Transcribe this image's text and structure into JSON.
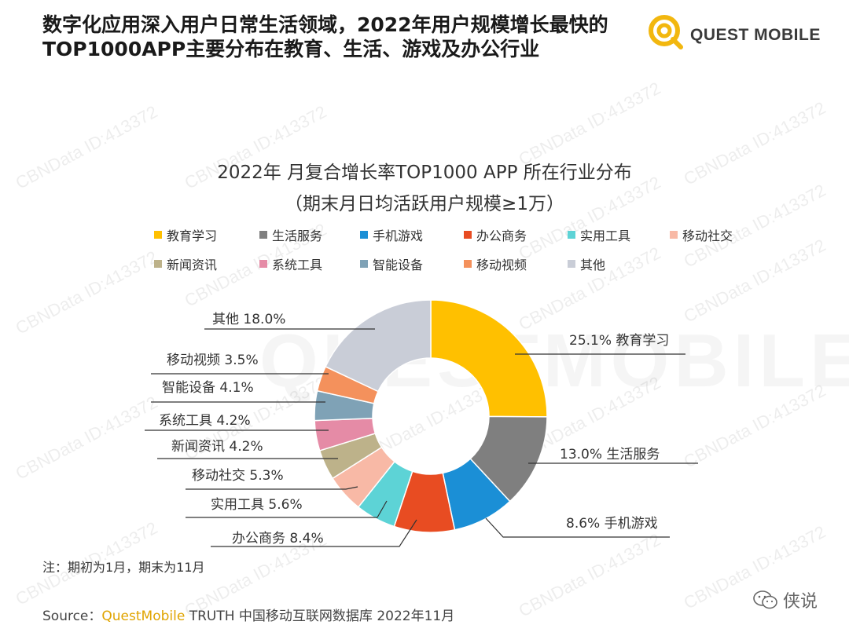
{
  "headline": {
    "line1": "数字化应用深入用户日常生活领域，2022年用户规模增长最快的",
    "line2": "TOP1000APP主要分布在教育、生活、游戏及办公行业"
  },
  "logo": {
    "text": "QUEST MOBILE"
  },
  "watermark": {
    "text": "CBNData ID:413372",
    "background_word": "QUESTMOBILE"
  },
  "chart_data": {
    "type": "pie",
    "title": "2022年 月复合增长率TOP1000 APP 所在行业分布",
    "subtitle": "（期末月日均活跃用户规模≥1万）",
    "unit": "%",
    "donut": true,
    "legend_position": "top",
    "categories": [
      "教育学习",
      "生活服务",
      "手机游戏",
      "办公商务",
      "实用工具",
      "移动社交",
      "新闻资讯",
      "系统工具",
      "智能设备",
      "移动视频",
      "其他"
    ],
    "values": [
      25.1,
      13.0,
      8.6,
      8.4,
      5.6,
      5.3,
      4.2,
      4.2,
      4.1,
      3.5,
      18.0
    ],
    "data_labels": [
      "25.1%",
      "13.0%",
      "8.6%",
      "8.4%",
      "5.6%",
      "5.3%",
      "4.2%",
      "4.2%",
      "4.1%",
      "3.5%",
      "18.0%"
    ],
    "colors": [
      "#FFC000",
      "#7F7F7F",
      "#1B8FD6",
      "#E84C22",
      "#5DD3D6",
      "#F8B9A6",
      "#BDB28A",
      "#E58BA6",
      "#7FA2B6",
      "#F4915C",
      "#C9CDD7"
    ]
  },
  "note": "注：期初为1月，期末为11月",
  "source": {
    "prefix": "Source：",
    "brand": "QuestMobile",
    "rest": " TRUTH 中国移动互联网数据库 2022年11月"
  },
  "wechat_tag": "侠说",
  "brand_accent": "#F2B70F"
}
